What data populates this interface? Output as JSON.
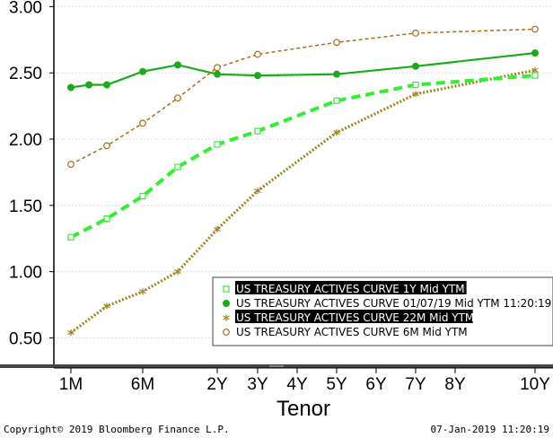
{
  "chart_data": {
    "type": "line",
    "xlabel": "Tenor",
    "ylabel": "",
    "ylim": [
      0.3,
      3.05
    ],
    "yticks": [
      "0.50",
      "1.00",
      "1.50",
      "2.00",
      "2.50",
      "3.00"
    ],
    "xticks": [
      "1M",
      "6M",
      "2Y",
      "3Y",
      "4Y",
      "5Y",
      "6Y",
      "7Y",
      "8Y",
      "10Y"
    ],
    "legend_position": "bottom-right",
    "grid": "horizontal",
    "series": [
      {
        "name": "US TREASURY ACTIVES CURVE 1Y Mid YTM",
        "color": "#33ee33",
        "style": "dashed",
        "marker": "open-square",
        "x": [
          "1M",
          "3M",
          "6M",
          "1Y",
          "2Y",
          "3Y",
          "5Y",
          "7Y",
          "10Y"
        ],
        "values": [
          1.26,
          1.4,
          1.57,
          1.79,
          1.96,
          2.06,
          2.29,
          2.41,
          2.48
        ]
      },
      {
        "name": "US TREASURY ACTIVES CURVE 01/07/19 Mid YTM 11:20:19",
        "color": "#1aaa1a",
        "style": "solid",
        "marker": "filled-circle",
        "x": [
          "1M",
          "2M",
          "3M",
          "6M",
          "1Y",
          "2Y",
          "3Y",
          "5Y",
          "7Y",
          "10Y"
        ],
        "values": [
          2.39,
          2.41,
          2.41,
          2.51,
          2.56,
          2.49,
          2.48,
          2.49,
          2.55,
          2.65
        ]
      },
      {
        "name": "US TREASURY ACTIVES CURVE 22M Mid YTM",
        "color": "#a08820",
        "style": "dotted",
        "marker": "asterisk",
        "x": [
          "1M",
          "3M",
          "6M",
          "1Y",
          "2Y",
          "3Y",
          "5Y",
          "7Y",
          "10Y"
        ],
        "values": [
          0.54,
          0.74,
          0.85,
          1.0,
          1.32,
          1.61,
          2.05,
          2.34,
          2.52
        ]
      },
      {
        "name": "US TREASURY ACTIVES CURVE 6M Mid YTM",
        "color": "#b06a1a",
        "style": "dashed-thin",
        "marker": "open-circle",
        "x": [
          "1M",
          "3M",
          "6M",
          "1Y",
          "2Y",
          "3Y",
          "5Y",
          "7Y",
          "10Y"
        ],
        "values": [
          1.81,
          1.95,
          2.12,
          2.31,
          2.54,
          2.64,
          2.73,
          2.8,
          2.83
        ]
      }
    ]
  },
  "footer": {
    "copyright": "Copyright© 2019 Bloomberg Finance L.P.",
    "timestamp": "07-Jan-2019 11:20:19"
  }
}
